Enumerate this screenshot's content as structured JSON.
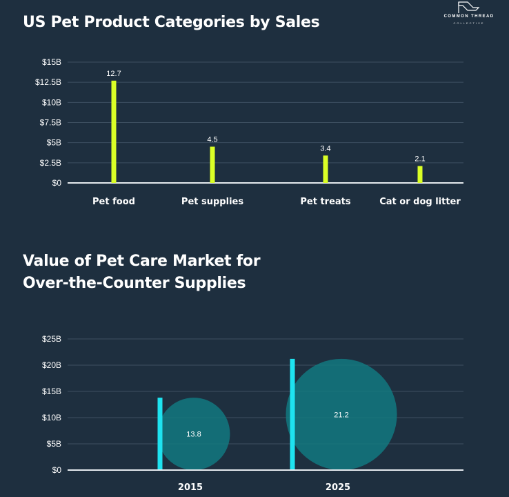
{
  "brand": {
    "name": "COMMON THREAD",
    "sub": "COLLECTIVE"
  },
  "colors": {
    "background": "#1e2f3f",
    "bar_primary": "#dbff26",
    "bar_secondary": "#1ee3f0",
    "bubble": "#127880"
  },
  "chart_data": [
    {
      "type": "bar",
      "title": "US Pet Product Categories by Sales",
      "categories": [
        "Pet food",
        "Pet supplies",
        "Pet treats",
        "Cat or dog litter"
      ],
      "values": [
        12.7,
        4.5,
        3.4,
        2.1
      ],
      "data_labels": [
        "12.7",
        "4.5",
        "3.4",
        "2.1"
      ],
      "ylim": [
        0,
        15
      ],
      "yticks": [
        0,
        2.5,
        5,
        7.5,
        10,
        12.5,
        15
      ],
      "ytick_labels": [
        "$0",
        "$2.5B",
        "$5B",
        "$7.5B",
        "$10B",
        "$12.5B",
        "$15B"
      ],
      "grid": true
    },
    {
      "type": "bar",
      "title_lines": [
        "Value of Pet Care Market for",
        "Over-the-Counter Supplies"
      ],
      "categories": [
        "2015",
        "2025"
      ],
      "values": [
        13.8,
        21.2
      ],
      "data_labels": [
        "13.8",
        "21.2"
      ],
      "ylim": [
        0,
        25
      ],
      "yticks": [
        0,
        5,
        10,
        15,
        20,
        25
      ],
      "ytick_labels": [
        "$0",
        "$5B",
        "$10B",
        "$15B",
        "$20B",
        "$25B"
      ],
      "grid": true
    }
  ]
}
